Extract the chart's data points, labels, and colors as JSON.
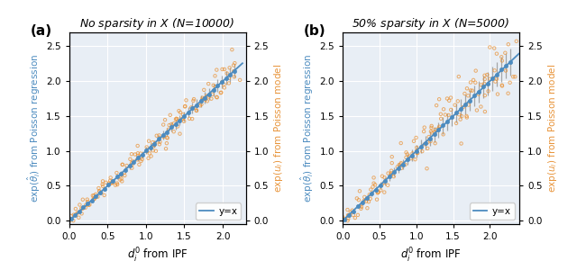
{
  "panel_a": {
    "title": "No sparsity in $X$ ($N$=10000)",
    "label": "(a)",
    "xlim": [
      0.0,
      2.3
    ],
    "ylim": [
      -0.05,
      2.7
    ],
    "yticks": [
      0.0,
      0.5,
      1.0,
      1.5,
      2.0,
      2.5
    ],
    "xticks": [
      0.0,
      0.5,
      1.0,
      1.5,
      2.0
    ],
    "xlabel": "$d_i^0$ from IPF",
    "ylabel_left": "$\\exp(\\hat{\\theta}_i)$ from Poisson regression",
    "ylabel_right": "$\\exp(u_i)$ from Poisson model",
    "n_blue": 40,
    "x_max": 2.15,
    "err_scale": 0.09,
    "n_orange_per_blue": 4,
    "orange_x_noise": 0.04,
    "orange_y_noise": 0.08,
    "seed_blue": 0,
    "seed_orange": 1
  },
  "panel_b": {
    "title": "50% sparsity in $X$ ($N$=5000)",
    "label": "(b)",
    "xlim": [
      0.0,
      2.4
    ],
    "ylim": [
      -0.05,
      2.7
    ],
    "yticks": [
      0.0,
      0.5,
      1.0,
      1.5,
      2.0,
      2.5
    ],
    "xticks": [
      0.0,
      0.5,
      1.0,
      1.5,
      2.0
    ],
    "xlabel": "$d_i^0$ from IPF",
    "ylabel_left": "$\\exp(\\hat{\\theta}_i)$ from Poisson regression",
    "ylabel_right": "$\\exp(u_i)$ from Poisson model",
    "n_blue": 38,
    "x_max": 2.28,
    "err_scale": 0.18,
    "n_orange_per_blue": 4,
    "orange_x_noise": 0.05,
    "orange_y_noise": 0.14,
    "seed_blue": 2,
    "seed_orange": 3
  },
  "blue_color": "#4C8BBF",
  "orange_color": "#E8943A",
  "gray_color": "#999999",
  "background_color": "#E8EEF5",
  "grid_color": "#FFFFFF",
  "legend_text": "y=x",
  "figsize": [
    6.4,
    3.0
  ],
  "dpi": 100
}
